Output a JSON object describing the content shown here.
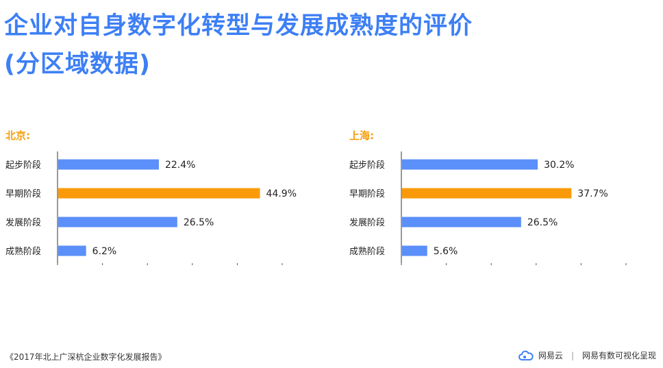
{
  "title_line1": "企业对自身数字化转型与发展成熟度的评价",
  "title_line2": "(分区域数据)",
  "footer": {
    "source": "《2017年北上广深杭企业数字化发展报告》",
    "brand_name": "网易云",
    "separator": "|",
    "slogan": "网易有数可视化呈现"
  },
  "colors": {
    "accent": "#3d7ff5",
    "highlight": "#f59e0b",
    "bar": "#5b8ff9",
    "bar_highlight": "#fa9a0a"
  },
  "chart_data": [
    {
      "type": "bar",
      "orientation": "horizontal",
      "title": "北京:",
      "categories": [
        "起步阶段",
        "早期阶段",
        "发展阶段",
        "成熟阶段"
      ],
      "values": [
        22.4,
        44.9,
        26.5,
        6.2
      ],
      "value_labels": [
        "22.4%",
        "44.9%",
        "26.5%",
        "6.2%"
      ],
      "highlight_index": 1,
      "xlim": [
        0,
        50
      ],
      "grid": false
    },
    {
      "type": "bar",
      "orientation": "horizontal",
      "title": "上海:",
      "categories": [
        "起步阶段",
        "早期阶段",
        "发展阶段",
        "成熟阶段"
      ],
      "values": [
        30.2,
        37.7,
        26.5,
        5.6
      ],
      "value_labels": [
        "30.2%",
        "37.7%",
        "26.5%",
        "5.6%"
      ],
      "highlight_index": 1,
      "xlim": [
        0,
        50
      ],
      "grid": false
    }
  ]
}
